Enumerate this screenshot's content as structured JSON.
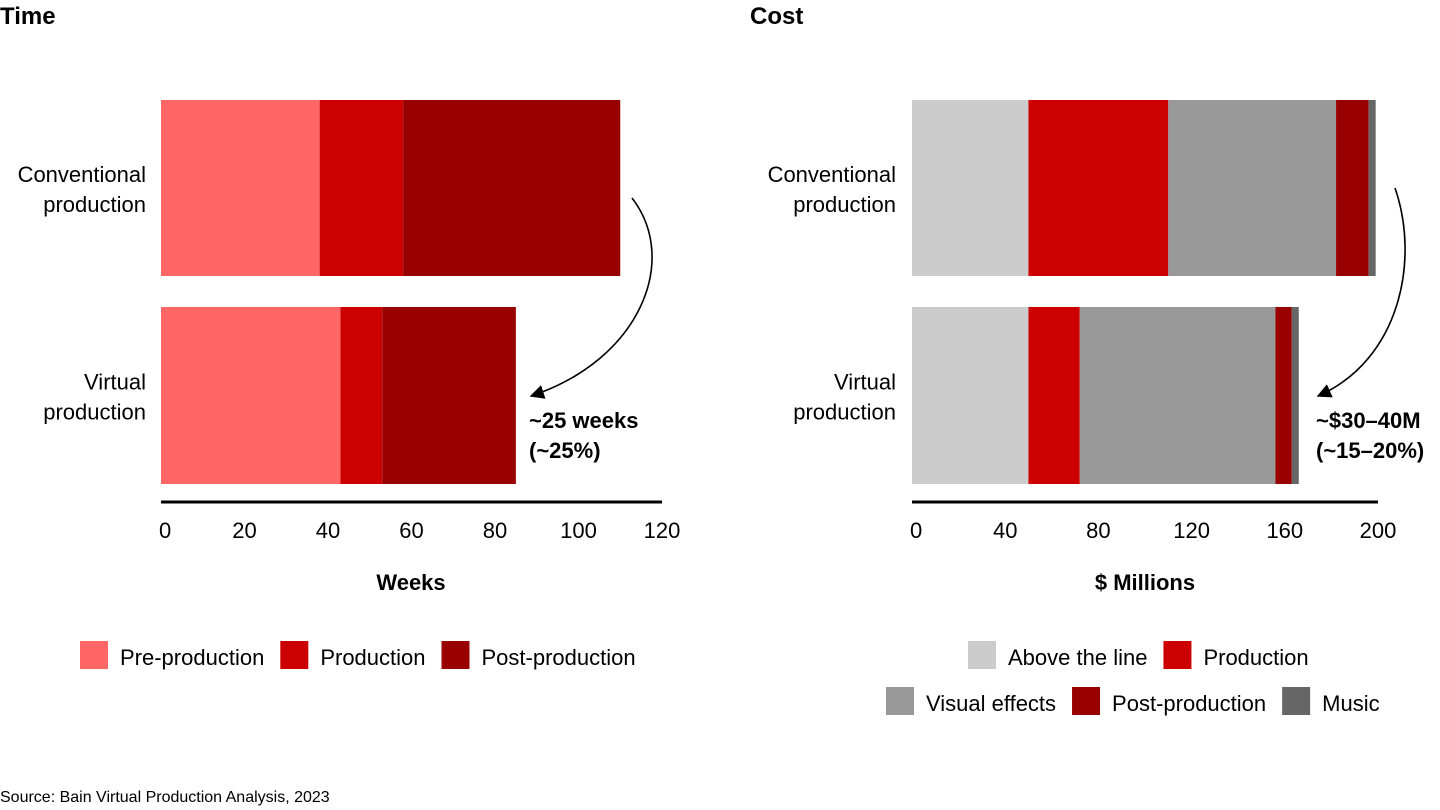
{
  "source": "Source: Bain Virtual Production Analysis, 2023",
  "chart_data": [
    {
      "type": "bar",
      "orientation": "horizontal",
      "stacked": true,
      "title": "Time",
      "xlabel": "Weeks",
      "ylabel": "",
      "xlim": [
        0,
        120
      ],
      "xticks": [
        "0",
        "20",
        "40",
        "60",
        "80",
        "100",
        "120"
      ],
      "categories": [
        [
          "Conventional",
          "production"
        ],
        [
          "Virtual",
          "production"
        ]
      ],
      "series": [
        {
          "name": "Pre-production",
          "color": "#FF6666",
          "values": [
            38,
            43
          ]
        },
        {
          "name": "Production",
          "color": "#CC0000",
          "values": [
            20,
            10
          ]
        },
        {
          "name": "Post-production",
          "color": "#990000",
          "values": [
            52,
            32
          ]
        }
      ],
      "annotation": [
        "~25 weeks",
        "(~25%)"
      ],
      "legend": {
        "position": "bottom",
        "rows": [
          [
            "Pre-production",
            "Production",
            "Post-production"
          ]
        ]
      },
      "grid": false
    },
    {
      "type": "bar",
      "orientation": "horizontal",
      "stacked": true,
      "title": "Cost",
      "xlabel": "$ Millions",
      "ylabel": "",
      "xlim": [
        0,
        200
      ],
      "xticks": [
        "0",
        "40",
        "80",
        "120",
        "160",
        "200"
      ],
      "categories": [
        [
          "Conventional",
          "production"
        ],
        [
          "Virtual",
          "production"
        ]
      ],
      "series": [
        {
          "name": "Above the line",
          "color": "#CCCCCC",
          "values": [
            50,
            50
          ]
        },
        {
          "name": "Production",
          "color": "#CC0000",
          "values": [
            60,
            22
          ]
        },
        {
          "name": "Visual effects",
          "color": "#999999",
          "values": [
            72,
            84
          ]
        },
        {
          "name": "Post-production",
          "color": "#990000",
          "values": [
            14,
            7
          ]
        },
        {
          "name": "Music",
          "color": "#666666",
          "values": [
            3,
            3
          ]
        }
      ],
      "annotation": [
        "~$30–40M",
        "(~15–20%)"
      ],
      "legend": {
        "position": "bottom",
        "rows": [
          [
            "Above the line",
            "Production"
          ],
          [
            "Visual effects",
            "Post-production",
            "Music"
          ]
        ]
      },
      "grid": false
    }
  ]
}
